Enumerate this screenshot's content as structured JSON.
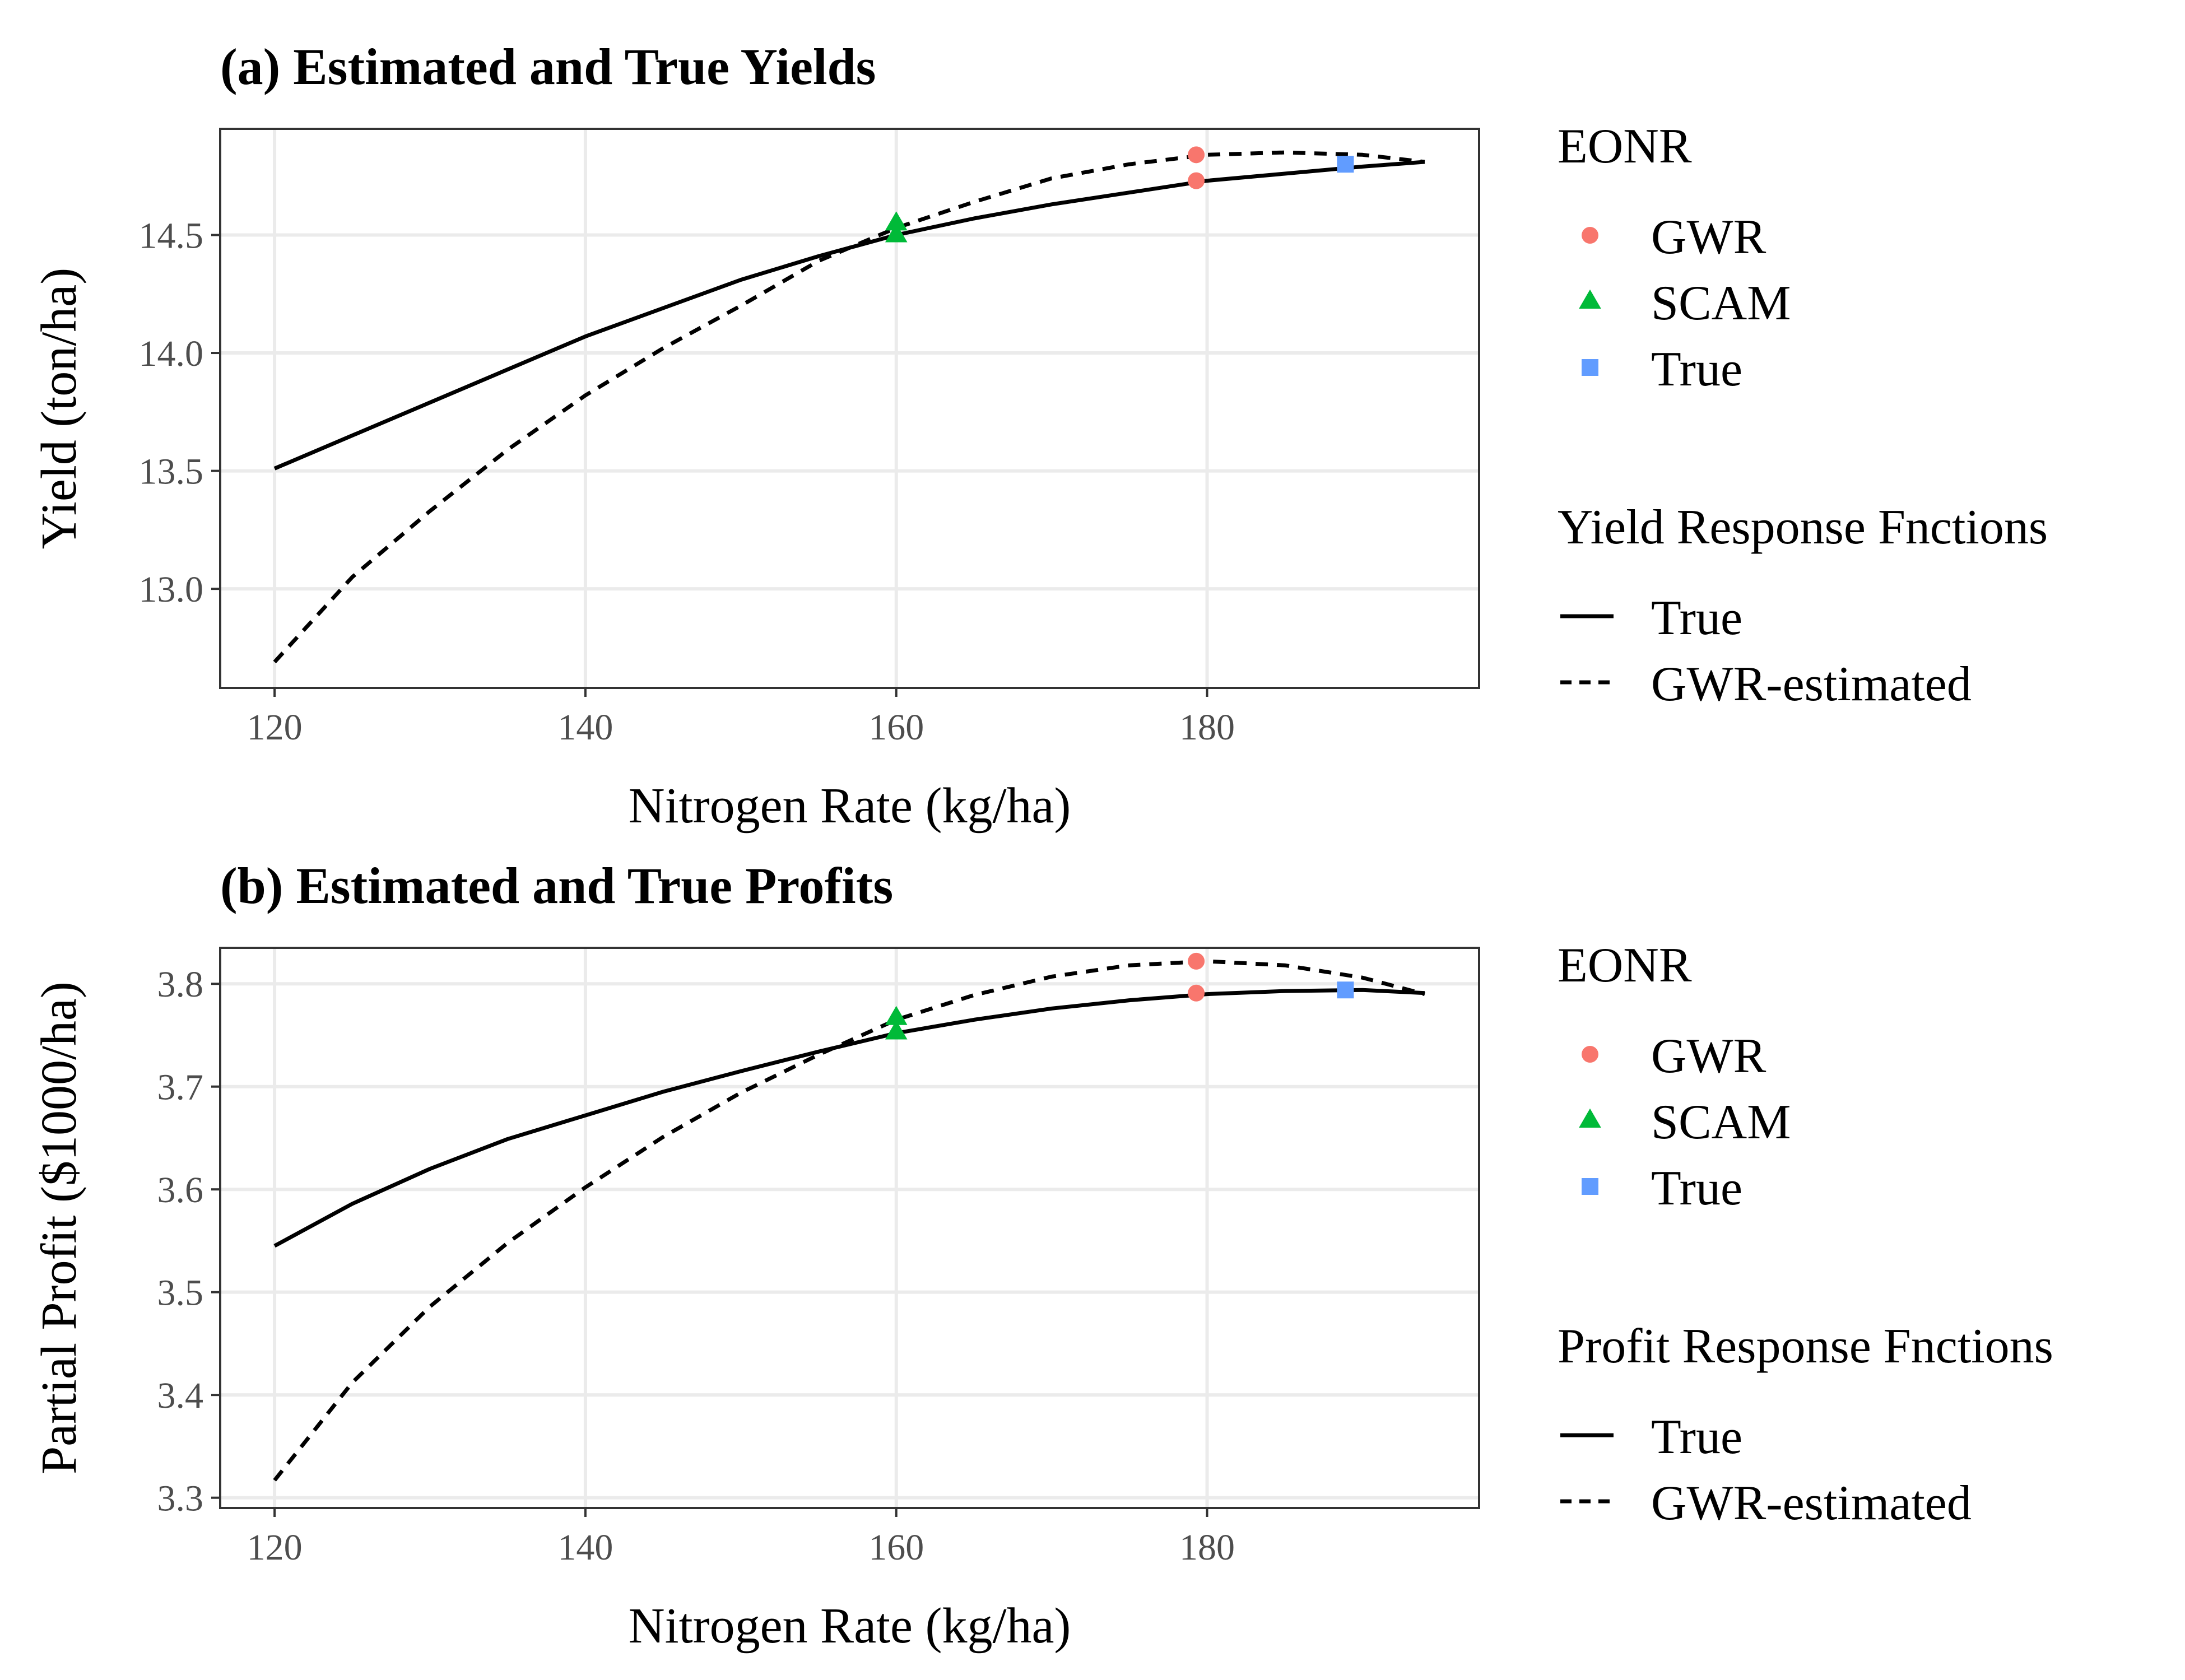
{
  "colors": {
    "GWR": "#F8766D",
    "SCAM": "#00BA38",
    "True": "#619CFF",
    "curve": "#000000",
    "grid": "#EBEBEB",
    "border": "#333333"
  },
  "chart_data": [
    {
      "type": "line",
      "title": "(a) Estimated and True Yields",
      "xlabel": "Nitrogen Rate (kg/ha)",
      "ylabel": "Yield (ton/ha)",
      "xlim": [
        116.5,
        197.5
      ],
      "ylim": [
        12.58,
        14.95
      ],
      "x_ticks": [
        120,
        140,
        160,
        180
      ],
      "y_ticks": [
        13.0,
        13.5,
        14.0,
        14.5
      ],
      "y_tick_labels": [
        "13.0",
        "13.5",
        "14.0",
        "14.5"
      ],
      "grid": true,
      "series": [
        {
          "name": "True",
          "style": "solid",
          "x": [
            120,
            125,
            130,
            135,
            140,
            145,
            150,
            155,
            160,
            165,
            170,
            175,
            180,
            185,
            190,
            194
          ],
          "y": [
            13.51,
            13.65,
            13.79,
            13.93,
            14.07,
            14.19,
            14.31,
            14.41,
            14.5,
            14.57,
            14.63,
            14.68,
            14.73,
            14.76,
            14.79,
            14.81
          ]
        },
        {
          "name": "GWR-estimated",
          "style": "dashed",
          "x": [
            120,
            125,
            130,
            135,
            140,
            145,
            150,
            155,
            160,
            165,
            170,
            175,
            180,
            185,
            190,
            194
          ],
          "y": [
            12.69,
            13.05,
            13.33,
            13.59,
            13.82,
            14.02,
            14.2,
            14.39,
            14.53,
            14.64,
            14.74,
            14.8,
            14.84,
            14.85,
            14.84,
            14.81
          ]
        }
      ],
      "points": [
        {
          "group": "GWR",
          "shape": "circle",
          "x": 179.3,
          "y": 14.84
        },
        {
          "group": "GWR",
          "shape": "circle",
          "x": 179.3,
          "y": 14.73
        },
        {
          "group": "SCAM",
          "shape": "triangle",
          "x": 160.0,
          "y": 14.55
        },
        {
          "group": "SCAM",
          "shape": "triangle",
          "x": 160.0,
          "y": 14.5
        },
        {
          "group": "True",
          "shape": "square",
          "x": 188.9,
          "y": 14.8
        }
      ],
      "legend_eonr": {
        "title": "EONR",
        "items": [
          "GWR",
          "SCAM",
          "True"
        ]
      },
      "legend_lines": {
        "title": "Yield Response Fnctions",
        "items": [
          "True",
          "GWR-estimated"
        ]
      }
    },
    {
      "type": "line",
      "title": "(b) Estimated and True Profits",
      "xlabel": "Nitrogen Rate (kg/ha)",
      "ylabel": "Partial Profit ($1000/ha)",
      "xlim": [
        116.5,
        197.5
      ],
      "ylim": [
        3.29,
        3.835
      ],
      "x_ticks": [
        120,
        140,
        160,
        180
      ],
      "y_ticks": [
        3.3,
        3.4,
        3.5,
        3.6,
        3.7,
        3.8
      ],
      "y_tick_labels": [
        "3.3",
        "3.4",
        "3.5",
        "3.6",
        "3.7",
        "3.8"
      ],
      "grid": true,
      "series": [
        {
          "name": "True",
          "style": "solid",
          "x": [
            120,
            125,
            130,
            135,
            140,
            145,
            150,
            155,
            160,
            165,
            170,
            175,
            180,
            185,
            190,
            194
          ],
          "y": [
            3.545,
            3.586,
            3.62,
            3.649,
            3.672,
            3.695,
            3.715,
            3.734,
            3.752,
            3.765,
            3.776,
            3.784,
            3.79,
            3.793,
            3.794,
            3.791
          ]
        },
        {
          "name": "GWR-estimated",
          "style": "dashed",
          "x": [
            120,
            125,
            130,
            135,
            140,
            145,
            150,
            155,
            160,
            165,
            170,
            175,
            180,
            185,
            190,
            194
          ],
          "y": [
            3.317,
            3.412,
            3.486,
            3.548,
            3.602,
            3.651,
            3.694,
            3.731,
            3.765,
            3.789,
            3.807,
            3.818,
            3.822,
            3.818,
            3.806,
            3.79
          ]
        }
      ],
      "points": [
        {
          "group": "GWR",
          "shape": "circle",
          "x": 179.3,
          "y": 3.822
        },
        {
          "group": "GWR",
          "shape": "circle",
          "x": 179.3,
          "y": 3.791
        },
        {
          "group": "SCAM",
          "shape": "triangle",
          "x": 160.0,
          "y": 3.767
        },
        {
          "group": "SCAM",
          "shape": "triangle",
          "x": 160.0,
          "y": 3.753
        },
        {
          "group": "True",
          "shape": "square",
          "x": 188.9,
          "y": 3.794
        }
      ],
      "legend_eonr": {
        "title": "EONR",
        "items": [
          "GWR",
          "SCAM",
          "True"
        ]
      },
      "legend_lines": {
        "title": "Profit Response Fnctions",
        "items": [
          "True",
          "GWR-estimated"
        ]
      }
    }
  ]
}
